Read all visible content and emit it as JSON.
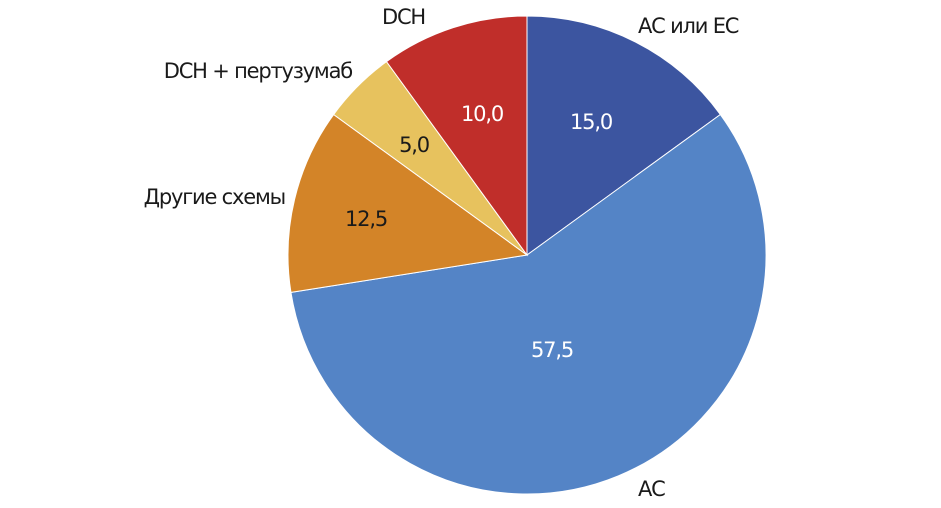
{
  "chart_data": {
    "type": "pie",
    "categories": [
      "АС или ЕС",
      "АС",
      "Другие схемы",
      "DCH + пертузумаб",
      "DCH"
    ],
    "values": [
      15.0,
      57.5,
      12.5,
      5.0,
      10.0
    ],
    "value_labels": [
      "15,0",
      "57,5",
      "12,5",
      "5,0",
      "10,0"
    ],
    "colors": [
      "#3c55a0",
      "#5484c6",
      "#d38428",
      "#e7c25e",
      "#c02e2a"
    ],
    "start_angle": "12 o'clock",
    "direction": "clockwise",
    "legend": "none"
  }
}
